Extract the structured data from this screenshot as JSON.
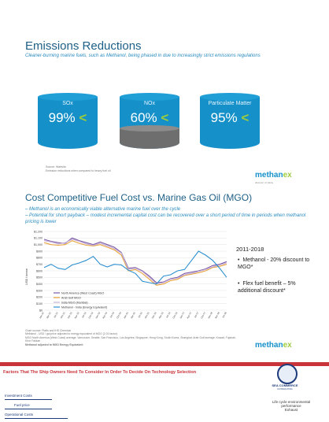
{
  "slide1": {
    "title": "Emissions Reductions",
    "subtitle": "Cleaner-burning marine fuels, such as Methanol, being phased in due to increasingly strict emissions regulations",
    "metrics": [
      {
        "label": "SOx",
        "value": "99%"
      },
      {
        "label": "NOx",
        "value": "60%"
      },
      {
        "label": "Particulate Matter",
        "value": "95%"
      }
    ],
    "source_line1": "Source: Wartsila",
    "source_line2": "Emission reductions when compared to heavy fuel oil",
    "logo": "methan",
    "logo_x": "ex",
    "logo_tag": "discover of clarity"
  },
  "slide2": {
    "title": "Cost Competitive Fuel Cost vs. Marine Gas Oil (MGO)",
    "bullet1": "Methanol is an economically viable alternative marine fuel over the cycle",
    "bullet2": "Potential for short payback – modest incremental capital cost can be recovered over a short period of time in periods when methanol pricing is lower",
    "side_title": "2011-2018",
    "side_bullets": [
      "Methanol - 20% discount to MGO*",
      "Flex fuel benefit – 5% additional discount*"
    ],
    "footer_lines": [
      "Chart source: Platts and IHS Chemical",
      "Methanol - USD / gal price adjusted to energy equivalent of MGO (2.01 factor)",
      "MGO North America (West Coast) average: Vancouver, Seattle, San Francisco, Los Angeles; Singapore, Hong Kong, South Korea, Shanghai; Arab Gulf average: Kuwait, Fujairah, Khor Fakkan",
      "Methanol adjusted to MGO Energy Equivalent"
    ],
    "logo": "methan",
    "logo_x": "ex"
  },
  "chart_data": {
    "type": "line",
    "ylabel": "US$ / tonne",
    "ylim": [
      0,
      1200
    ],
    "yticks": [
      "$0",
      "$100",
      "$200",
      "$300",
      "$400",
      "$500",
      "$600",
      "$700",
      "$800",
      "$900",
      "$1,000",
      "$1,100",
      "$1,200"
    ],
    "x": [
      "Jan-12",
      "Apr-12",
      "Jul-12",
      "Oct-12",
      "Jan-13",
      "Apr-13",
      "Jul-13",
      "Oct-13",
      "Jan-14",
      "Apr-14",
      "Jul-14",
      "Oct-14",
      "Jan-15",
      "Apr-15",
      "Jul-15",
      "Oct-15",
      "Jan-16",
      "Apr-16",
      "Jul-16",
      "Oct-16",
      "Jan-17",
      "Apr-17",
      "Jul-17",
      "Oct-17",
      "Jan-18",
      "Apr-18",
      "Jul-18"
    ],
    "series": [
      {
        "name": "North America (West Coast) MGO",
        "color": "#7b5aa6",
        "values": [
          1080,
          1050,
          1030,
          1020,
          1100,
          1060,
          1030,
          1000,
          1040,
          1000,
          960,
          880,
          640,
          650,
          600,
          520,
          420,
          430,
          480,
          500,
          560,
          580,
          600,
          630,
          680,
          700,
          740
        ]
      },
      {
        "name": "Arab Gulf MGO",
        "color": "#e8a33a",
        "values": [
          1030,
          1000,
          990,
          1000,
          1060,
          1020,
          990,
          980,
          1000,
          960,
          920,
          840,
          600,
          620,
          560,
          470,
          380,
          400,
          450,
          470,
          530,
          550,
          570,
          600,
          650,
          670,
          700
        ]
      },
      {
        "name": "India MGO (Mumbai)",
        "color": "#c8b2d6",
        "values": [
          1060,
          1040,
          1010,
          1030,
          1080,
          1050,
          1010,
          990,
          1020,
          980,
          940,
          870,
          620,
          640,
          590,
          500,
          400,
          420,
          470,
          490,
          540,
          560,
          590,
          620,
          660,
          690,
          720
        ]
      },
      {
        "name": "Methanol - India (Energy Equivalent)",
        "color": "#2c8fd0",
        "values": [
          650,
          700,
          640,
          620,
          690,
          720,
          760,
          820,
          700,
          660,
          700,
          690,
          610,
          560,
          440,
          420,
          400,
          520,
          540,
          600,
          620,
          760,
          900,
          840,
          760,
          640,
          500
        ]
      }
    ],
    "legend_position": "bottom-left"
  },
  "slide3": {
    "title": "Factors That The Ship Owners Need To Consider In Order To Decide On Technology Selection",
    "company": "SEA COMMERCE",
    "company_sub": "CONSULTING",
    "costs": [
      "Investment Costs",
      "Fuel price",
      "Operational Costs"
    ],
    "lifecycle": "Life cycle environmental performance",
    "exhaust": "Exhaust"
  }
}
